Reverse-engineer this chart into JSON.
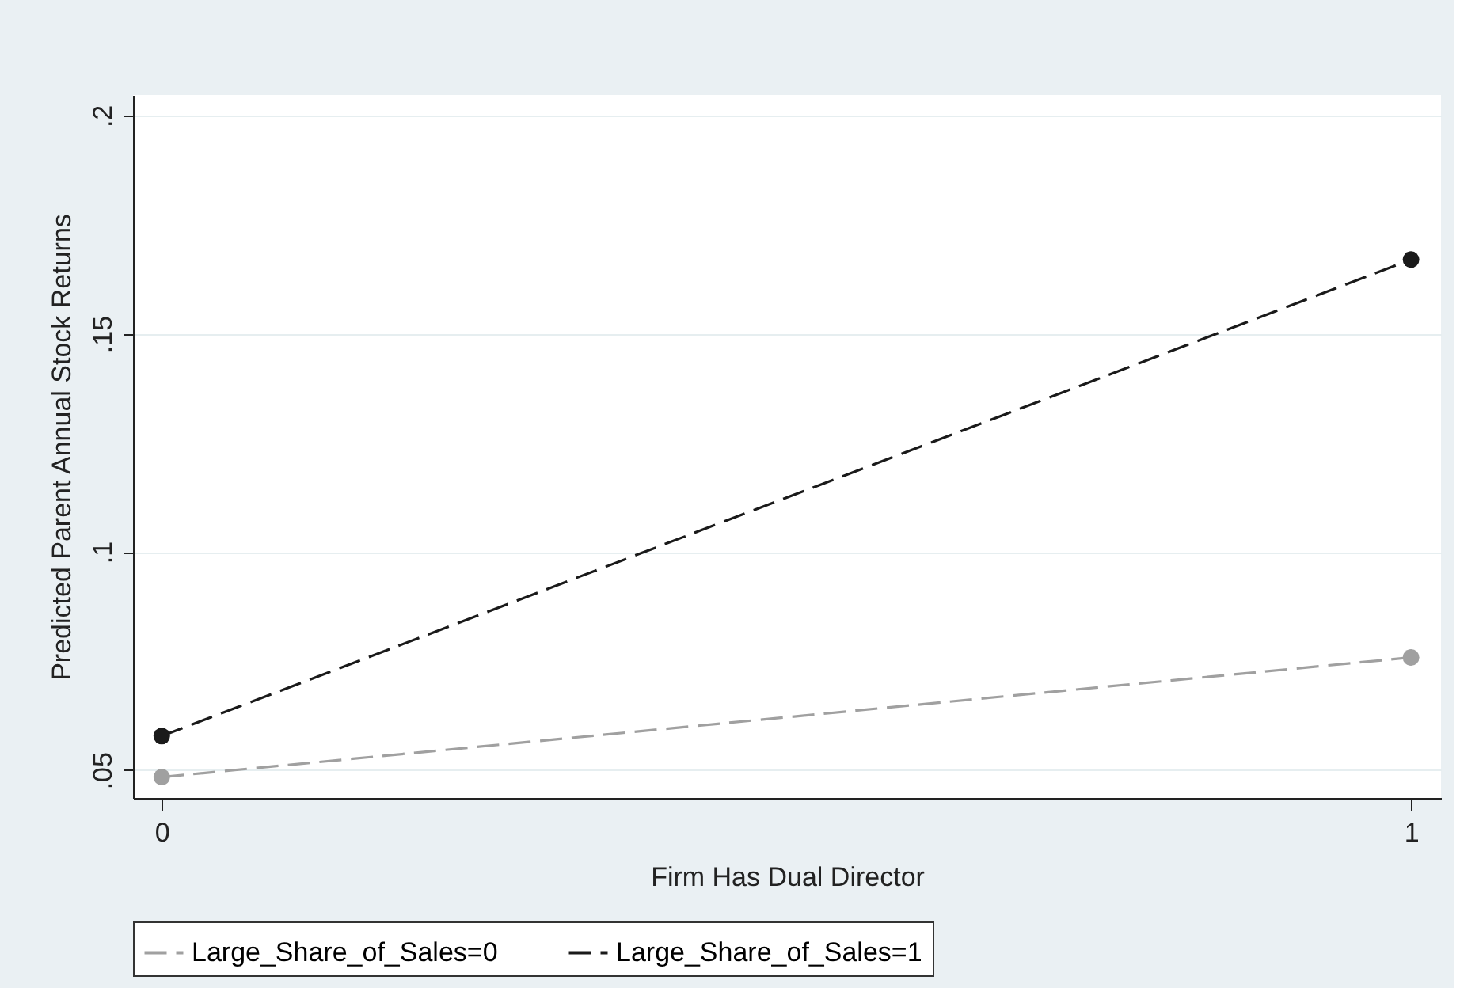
{
  "chart_data": {
    "type": "line",
    "xlabel": "Firm Has Dual Director",
    "ylabel": "Predicted Parent Annual Stock Returns",
    "x": [
      0,
      1
    ],
    "series": [
      {
        "name": "Large_Share_of_Sales=0",
        "color": "#a0a0a0",
        "values": [
          0.0484,
          0.0758
        ]
      },
      {
        "name": "Large_Share_of_Sales=1",
        "color": "#1a1a1a",
        "values": [
          0.0578,
          0.167
        ]
      }
    ],
    "xlim": [
      -0.023,
      1.024
    ],
    "xticks": [
      0,
      1
    ],
    "ylim": [
      0.0436,
      0.2047
    ],
    "yticks": [
      {
        "value": 0.05,
        "label": ".05"
      },
      {
        "value": 0.1,
        "label": ".1"
      },
      {
        "value": 0.15,
        "label": ".15"
      },
      {
        "value": 0.2,
        "label": ".2"
      }
    ],
    "grid": "y",
    "legend": "bottom",
    "marker": "circle",
    "line_style": "dashed"
  }
}
